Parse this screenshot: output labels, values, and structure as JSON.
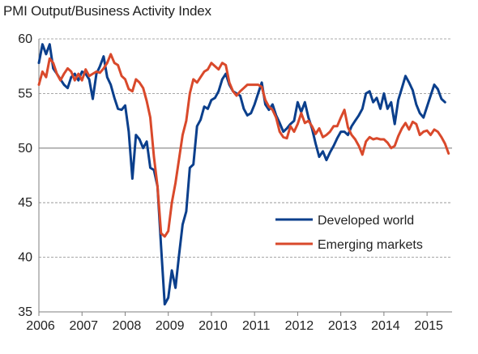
{
  "chart_data": {
    "type": "line",
    "title": "PMI Output/Business Activity Index",
    "xlabel": "",
    "ylabel": "",
    "xlim": [
      2006,
      2015.58
    ],
    "ylim": [
      35,
      60
    ],
    "x_ticks": [
      2006,
      2007,
      2008,
      2009,
      2010,
      2011,
      2012,
      2013,
      2014,
      2015
    ],
    "x_tick_labels": [
      "2006",
      "2007",
      "2008",
      "2009",
      "2010",
      "2011",
      "2012",
      "2013",
      "2014",
      "2015"
    ],
    "y_ticks": [
      35,
      40,
      45,
      50,
      55,
      60
    ],
    "y_tick_labels": [
      "35",
      "40",
      "45",
      "50",
      "55",
      "60"
    ],
    "grid": "horizontal dashed",
    "reference_line": 50,
    "legend_position": "lower-right",
    "series": [
      {
        "name": "Developed world",
        "color": "#0b3f8c",
        "points": [
          [
            2006.0,
            57.8
          ],
          [
            2006.083,
            59.5
          ],
          [
            2006.167,
            58.6
          ],
          [
            2006.25,
            59.5
          ],
          [
            2006.333,
            57.3
          ],
          [
            2006.417,
            56.8
          ],
          [
            2006.5,
            56.3
          ],
          [
            2006.583,
            55.8
          ],
          [
            2006.667,
            55.5
          ],
          [
            2006.75,
            56.5
          ],
          [
            2006.833,
            56.8
          ],
          [
            2006.917,
            56.2
          ],
          [
            2007.0,
            57.0
          ],
          [
            2007.083,
            56.8
          ],
          [
            2007.167,
            56.3
          ],
          [
            2007.25,
            54.5
          ],
          [
            2007.333,
            56.8
          ],
          [
            2007.417,
            57.5
          ],
          [
            2007.5,
            58.4
          ],
          [
            2007.583,
            56.5
          ],
          [
            2007.667,
            55.8
          ],
          [
            2007.75,
            54.6
          ],
          [
            2007.833,
            53.6
          ],
          [
            2007.917,
            53.5
          ],
          [
            2008.0,
            53.9
          ],
          [
            2008.083,
            51.5
          ],
          [
            2008.167,
            47.2
          ],
          [
            2008.25,
            51.2
          ],
          [
            2008.333,
            50.8
          ],
          [
            2008.417,
            50.0
          ],
          [
            2008.5,
            50.6
          ],
          [
            2008.583,
            48.2
          ],
          [
            2008.667,
            48.0
          ],
          [
            2008.75,
            46.5
          ],
          [
            2008.833,
            41.0
          ],
          [
            2008.917,
            35.7
          ],
          [
            2009.0,
            36.3
          ],
          [
            2009.083,
            38.8
          ],
          [
            2009.167,
            37.2
          ],
          [
            2009.25,
            40.2
          ],
          [
            2009.333,
            43.0
          ],
          [
            2009.417,
            44.2
          ],
          [
            2009.5,
            48.2
          ],
          [
            2009.583,
            48.5
          ],
          [
            2009.667,
            52.0
          ],
          [
            2009.75,
            52.6
          ],
          [
            2009.833,
            53.8
          ],
          [
            2009.917,
            53.6
          ],
          [
            2010.0,
            54.4
          ],
          [
            2010.083,
            54.6
          ],
          [
            2010.167,
            55.2
          ],
          [
            2010.25,
            56.3
          ],
          [
            2010.333,
            56.8
          ],
          [
            2010.417,
            55.8
          ],
          [
            2010.5,
            55.2
          ],
          [
            2010.583,
            55.0
          ],
          [
            2010.667,
            54.8
          ],
          [
            2010.75,
            53.6
          ],
          [
            2010.833,
            53.0
          ],
          [
            2010.917,
            53.2
          ],
          [
            2011.0,
            54.0
          ],
          [
            2011.083,
            55.0
          ],
          [
            2011.167,
            56.0
          ],
          [
            2011.25,
            54.0
          ],
          [
            2011.333,
            53.5
          ],
          [
            2011.417,
            54.0
          ],
          [
            2011.5,
            53.0
          ],
          [
            2011.583,
            52.3
          ],
          [
            2011.667,
            51.5
          ],
          [
            2011.75,
            51.8
          ],
          [
            2011.833,
            52.2
          ],
          [
            2011.917,
            52.5
          ],
          [
            2012.0,
            54.2
          ],
          [
            2012.083,
            53.3
          ],
          [
            2012.167,
            54.2
          ],
          [
            2012.25,
            52.8
          ],
          [
            2012.333,
            51.8
          ],
          [
            2012.417,
            50.4
          ],
          [
            2012.5,
            49.2
          ],
          [
            2012.583,
            49.7
          ],
          [
            2012.667,
            48.9
          ],
          [
            2012.75,
            49.6
          ],
          [
            2012.833,
            50.2
          ],
          [
            2012.917,
            50.9
          ],
          [
            2013.0,
            51.5
          ],
          [
            2013.083,
            51.5
          ],
          [
            2013.167,
            51.2
          ],
          [
            2013.25,
            52.0
          ],
          [
            2013.333,
            52.5
          ],
          [
            2013.417,
            53.0
          ],
          [
            2013.5,
            53.6
          ],
          [
            2013.583,
            55.0
          ],
          [
            2013.667,
            55.2
          ],
          [
            2013.75,
            54.2
          ],
          [
            2013.833,
            54.6
          ],
          [
            2013.917,
            53.6
          ],
          [
            2014.0,
            55.0
          ],
          [
            2014.083,
            53.6
          ],
          [
            2014.167,
            54.2
          ],
          [
            2014.25,
            52.2
          ],
          [
            2014.333,
            54.4
          ],
          [
            2014.417,
            55.5
          ],
          [
            2014.5,
            56.6
          ],
          [
            2014.583,
            56.0
          ],
          [
            2014.667,
            55.3
          ],
          [
            2014.75,
            54.0
          ],
          [
            2014.833,
            53.2
          ],
          [
            2014.917,
            52.8
          ],
          [
            2015.0,
            53.8
          ],
          [
            2015.083,
            54.8
          ],
          [
            2015.167,
            55.8
          ],
          [
            2015.25,
            55.4
          ],
          [
            2015.333,
            54.5
          ],
          [
            2015.417,
            54.2
          ]
        ]
      },
      {
        "name": "Emerging  markets",
        "color": "#d9492b",
        "points": [
          [
            2006.0,
            55.8
          ],
          [
            2006.083,
            57.0
          ],
          [
            2006.167,
            56.5
          ],
          [
            2006.25,
            58.2
          ],
          [
            2006.333,
            57.8
          ],
          [
            2006.417,
            56.8
          ],
          [
            2006.5,
            56.2
          ],
          [
            2006.583,
            56.8
          ],
          [
            2006.667,
            57.3
          ],
          [
            2006.75,
            57.0
          ],
          [
            2006.833,
            56.2
          ],
          [
            2006.917,
            56.8
          ],
          [
            2007.0,
            56.2
          ],
          [
            2007.083,
            57.2
          ],
          [
            2007.167,
            56.6
          ],
          [
            2007.25,
            56.8
          ],
          [
            2007.333,
            57.0
          ],
          [
            2007.417,
            56.9
          ],
          [
            2007.5,
            57.3
          ],
          [
            2007.583,
            57.8
          ],
          [
            2007.667,
            58.6
          ],
          [
            2007.75,
            57.8
          ],
          [
            2007.833,
            57.6
          ],
          [
            2007.917,
            56.6
          ],
          [
            2008.0,
            56.3
          ],
          [
            2008.083,
            55.4
          ],
          [
            2008.167,
            55.2
          ],
          [
            2008.25,
            56.3
          ],
          [
            2008.333,
            56.0
          ],
          [
            2008.417,
            55.5
          ],
          [
            2008.5,
            54.3
          ],
          [
            2008.583,
            52.8
          ],
          [
            2008.667,
            49.2
          ],
          [
            2008.75,
            46.5
          ],
          [
            2008.833,
            42.2
          ],
          [
            2008.917,
            41.9
          ],
          [
            2009.0,
            42.4
          ],
          [
            2009.083,
            45.0
          ],
          [
            2009.167,
            46.8
          ],
          [
            2009.25,
            49.0
          ],
          [
            2009.333,
            51.2
          ],
          [
            2009.417,
            52.5
          ],
          [
            2009.5,
            55.0
          ],
          [
            2009.583,
            56.3
          ],
          [
            2009.667,
            56.0
          ],
          [
            2009.75,
            56.5
          ],
          [
            2009.833,
            57.0
          ],
          [
            2009.917,
            57.2
          ],
          [
            2010.0,
            57.8
          ],
          [
            2010.083,
            57.5
          ],
          [
            2010.167,
            57.2
          ],
          [
            2010.25,
            57.8
          ],
          [
            2010.333,
            57.6
          ],
          [
            2010.417,
            56.0
          ],
          [
            2010.5,
            55.2
          ],
          [
            2010.583,
            54.8
          ],
          [
            2010.667,
            55.2
          ],
          [
            2010.75,
            55.5
          ],
          [
            2010.833,
            55.8
          ],
          [
            2010.917,
            55.8
          ],
          [
            2011.0,
            55.8
          ],
          [
            2011.083,
            55.8
          ],
          [
            2011.167,
            55.6
          ],
          [
            2011.25,
            54.4
          ],
          [
            2011.333,
            53.8
          ],
          [
            2011.417,
            53.5
          ],
          [
            2011.5,
            52.8
          ],
          [
            2011.583,
            51.5
          ],
          [
            2011.667,
            51.0
          ],
          [
            2011.75,
            50.9
          ],
          [
            2011.833,
            52.0
          ],
          [
            2011.917,
            51.5
          ],
          [
            2012.0,
            52.2
          ],
          [
            2012.083,
            53.2
          ],
          [
            2012.167,
            52.3
          ],
          [
            2012.25,
            52.5
          ],
          [
            2012.333,
            52.0
          ],
          [
            2012.417,
            51.3
          ],
          [
            2012.5,
            51.8
          ],
          [
            2012.583,
            51.0
          ],
          [
            2012.667,
            51.2
          ],
          [
            2012.75,
            51.5
          ],
          [
            2012.833,
            52.0
          ],
          [
            2012.917,
            52.0
          ],
          [
            2013.0,
            52.8
          ],
          [
            2013.083,
            53.5
          ],
          [
            2013.167,
            51.9
          ],
          [
            2013.25,
            51.2
          ],
          [
            2013.333,
            50.8
          ],
          [
            2013.417,
            50.2
          ],
          [
            2013.5,
            49.4
          ],
          [
            2013.583,
            50.6
          ],
          [
            2013.667,
            51.0
          ],
          [
            2013.75,
            50.8
          ],
          [
            2013.833,
            50.9
          ],
          [
            2013.917,
            50.8
          ],
          [
            2014.0,
            50.8
          ],
          [
            2014.083,
            50.5
          ],
          [
            2014.167,
            50.0
          ],
          [
            2014.25,
            50.2
          ],
          [
            2014.333,
            51.1
          ],
          [
            2014.417,
            51.8
          ],
          [
            2014.5,
            52.3
          ],
          [
            2014.583,
            51.7
          ],
          [
            2014.667,
            52.4
          ],
          [
            2014.75,
            52.2
          ],
          [
            2014.833,
            51.2
          ],
          [
            2014.917,
            51.5
          ],
          [
            2015.0,
            51.6
          ],
          [
            2015.083,
            51.2
          ],
          [
            2015.167,
            51.7
          ],
          [
            2015.25,
            51.5
          ],
          [
            2015.333,
            51.0
          ],
          [
            2015.417,
            50.4
          ],
          [
            2015.5,
            49.5
          ]
        ]
      }
    ]
  }
}
